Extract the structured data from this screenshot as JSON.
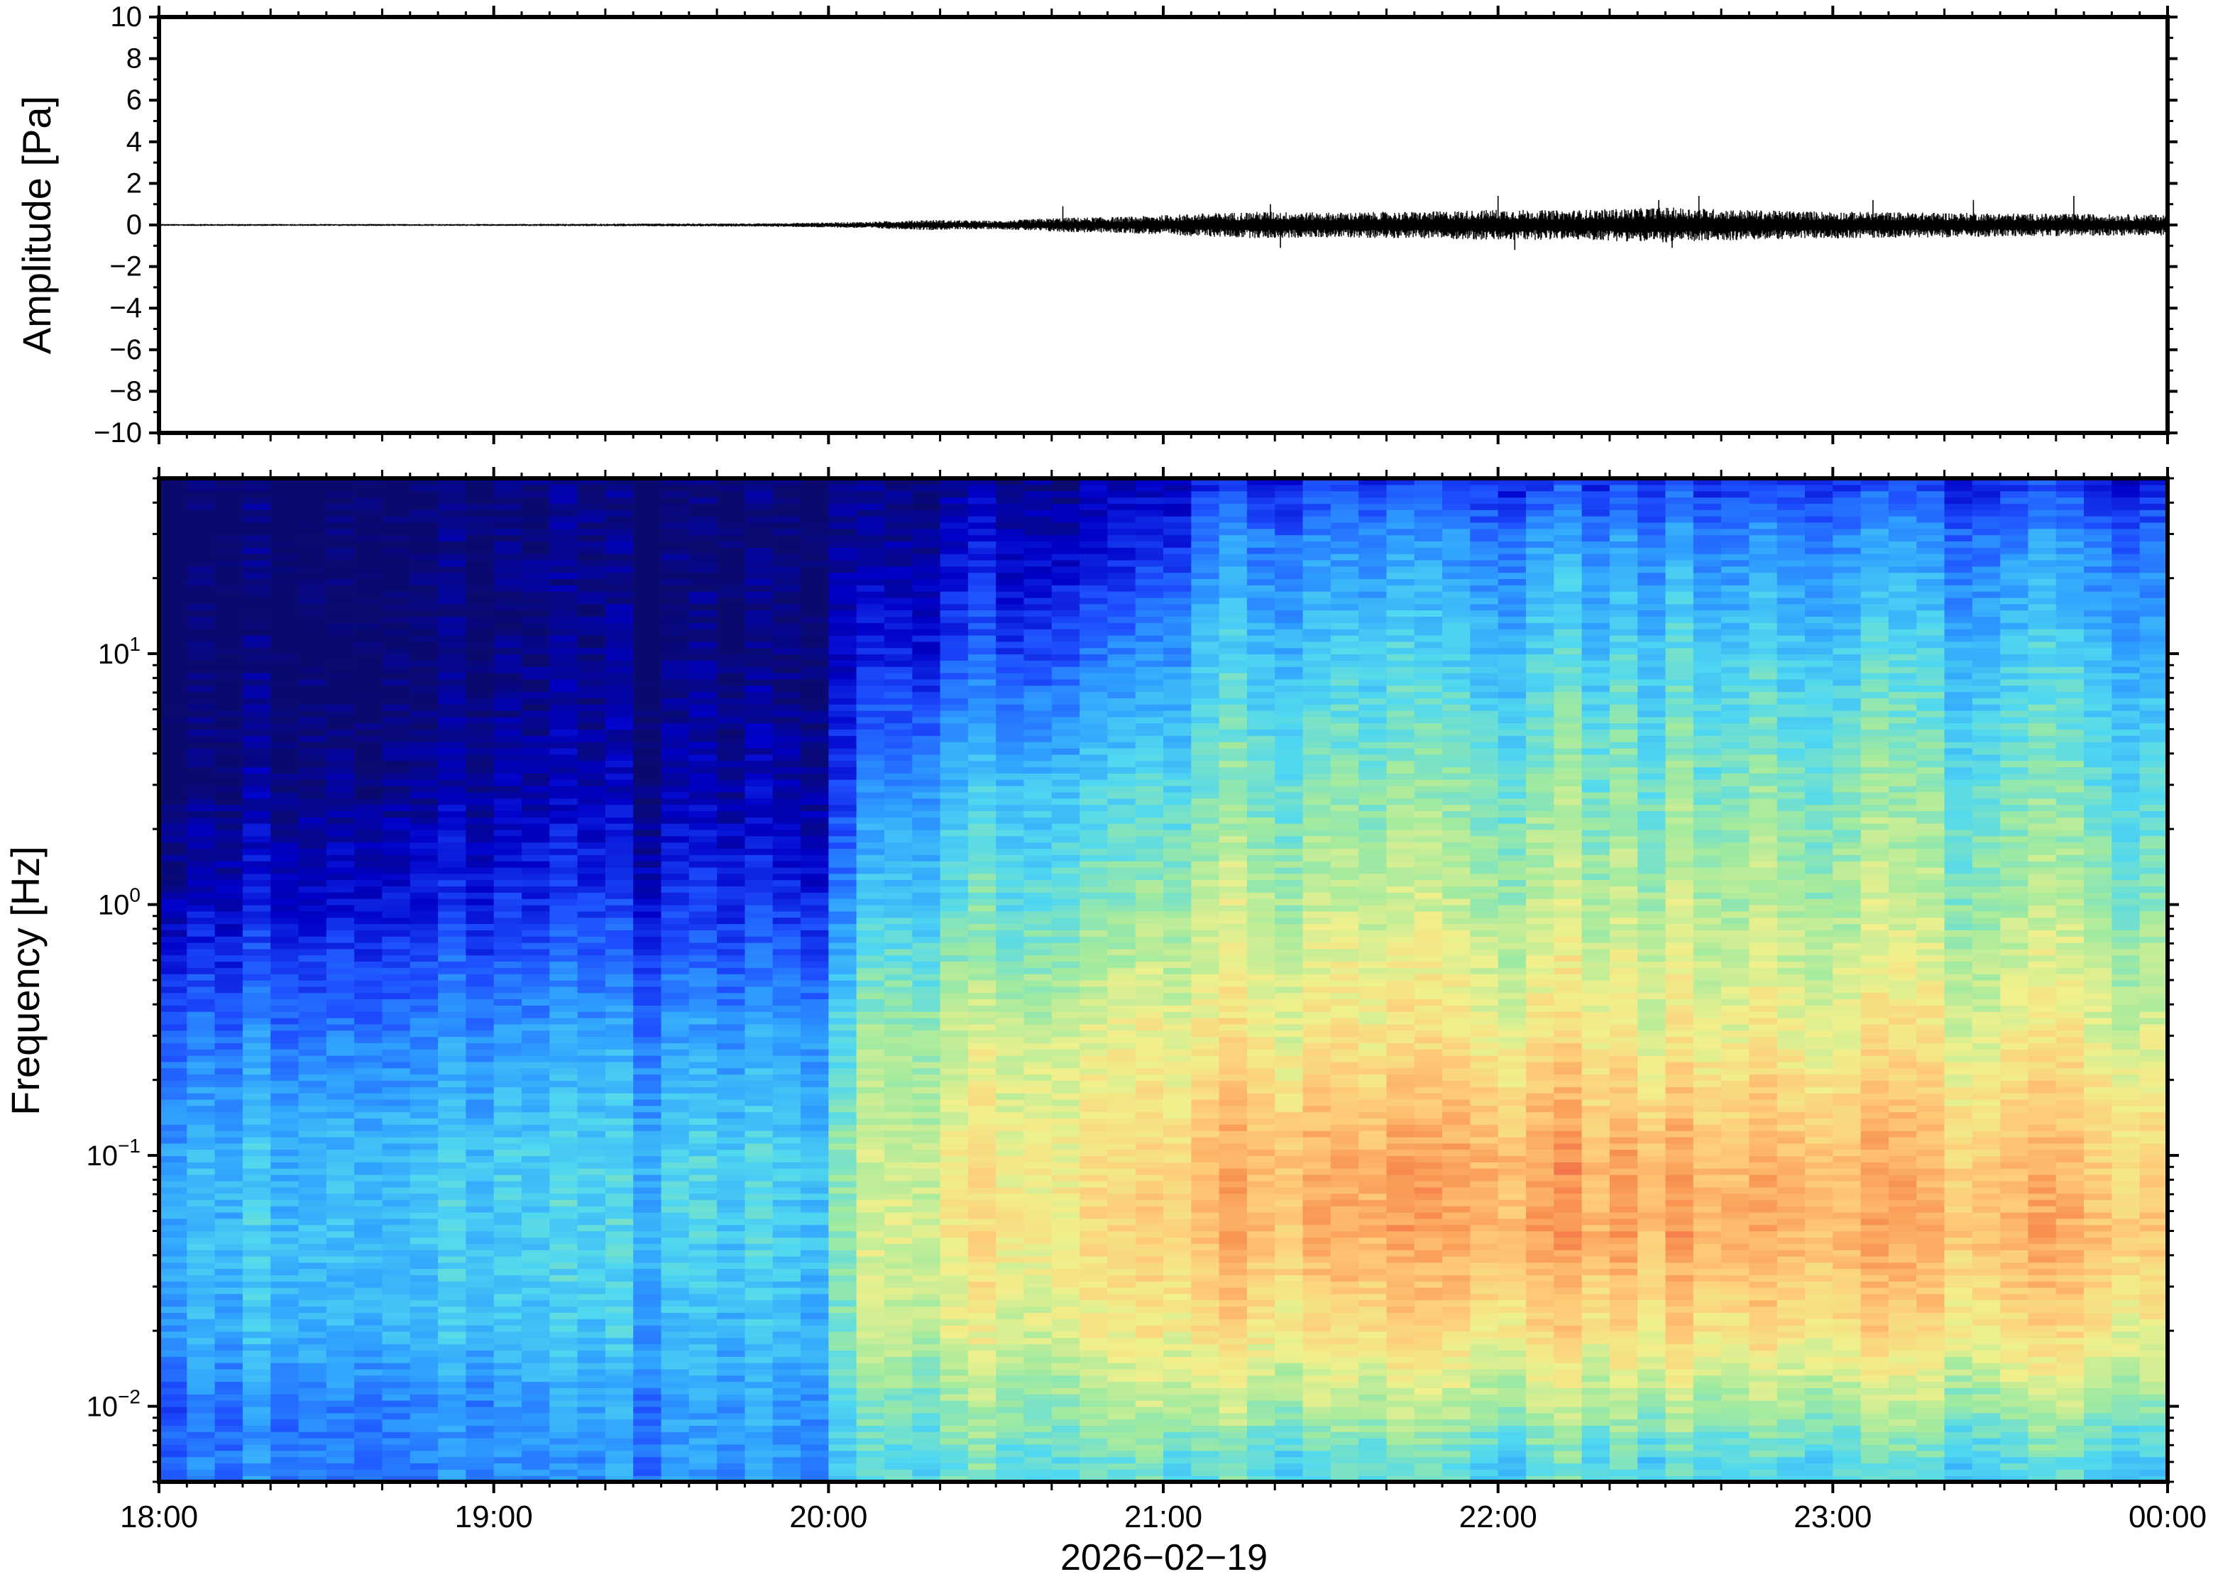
{
  "chart_data": [
    {
      "type": "line",
      "panel": "waveform",
      "title": "",
      "xlabel": "",
      "ylabel": "Amplitude [Pa]",
      "ylim": [
        -10,
        10
      ],
      "y_ticks": [
        10,
        8,
        6,
        4,
        2,
        0,
        -2,
        -4,
        -6,
        -8,
        -10
      ],
      "y_tick_labels": [
        "10",
        "8",
        "6",
        "4",
        "2",
        "0",
        "−2",
        "−4",
        "−6",
        "−8",
        "−10"
      ],
      "x_range": [
        "18:00",
        "00:00"
      ],
      "envelope": {
        "x_hours": [
          18.0,
          19.0,
          19.8,
          20.1,
          20.3,
          20.5,
          20.7,
          20.9,
          21.1,
          21.3,
          21.5,
          21.8,
          22.0,
          22.2,
          22.5,
          22.8,
          23.0,
          23.3,
          23.6,
          24.0
        ],
        "half_amplitude": [
          0.05,
          0.05,
          0.08,
          0.15,
          0.25,
          0.2,
          0.35,
          0.4,
          0.55,
          0.65,
          0.6,
          0.65,
          0.75,
          0.7,
          0.85,
          0.7,
          0.65,
          0.6,
          0.55,
          0.5
        ]
      },
      "spikes": [
        {
          "x": 20.7,
          "y": 0.9
        },
        {
          "x": 21.32,
          "y": 1.0
        },
        {
          "x": 21.35,
          "y": -1.1
        },
        {
          "x": 22.0,
          "y": 1.4
        },
        {
          "x": 22.05,
          "y": -1.2
        },
        {
          "x": 22.48,
          "y": 1.2
        },
        {
          "x": 22.6,
          "y": 1.4
        },
        {
          "x": 22.52,
          "y": -1.1
        },
        {
          "x": 23.12,
          "y": 1.2
        },
        {
          "x": 23.42,
          "y": 1.2
        },
        {
          "x": 23.72,
          "y": 1.4
        }
      ]
    },
    {
      "type": "heatmap",
      "panel": "spectrogram",
      "title": "",
      "xlabel": "2026−02−19",
      "ylabel": "Frequency [Hz]",
      "y_scale": "log",
      "ylim_hz": [
        0.005,
        50
      ],
      "y_major_ticks": [
        0.01,
        0.1,
        1,
        10
      ],
      "y_tick_labels": [
        {
          "base": "10",
          "exp": "−2"
        },
        {
          "base": "10",
          "exp": "−1"
        },
        {
          "base": "10",
          "exp": "0"
        },
        {
          "base": "10",
          "exp": "1"
        }
      ],
      "x_range": [
        "18:00",
        "00:00"
      ],
      "x_tick_labels": [
        "18:00",
        "19:00",
        "20:00",
        "21:00",
        "22:00",
        "23:00",
        "00:00"
      ],
      "colormap": [
        "#0a0a6e",
        "#0000c8",
        "#1e50ff",
        "#2fa0ff",
        "#50d8f0",
        "#a0eaa0",
        "#f0f08c",
        "#ffc878",
        "#f89050",
        "#e84040"
      ],
      "time_hours": [
        18.0,
        19.0,
        20.0,
        20.1,
        20.5,
        21.0,
        21.15,
        22.0,
        22.5,
        23.0,
        24.0
      ],
      "band_freqs_hz": [
        0.006,
        0.01,
        0.02,
        0.05,
        0.1,
        0.3,
        1,
        3,
        10,
        30,
        50
      ],
      "normalized_power": [
        [
          0.3,
          0.28,
          0.38,
          0.4,
          0.38,
          0.28,
          0.12,
          0.03,
          0.0,
          0.0,
          0.0
        ],
        [
          0.28,
          0.3,
          0.38,
          0.4,
          0.4,
          0.3,
          0.16,
          0.05,
          0.0,
          0.0,
          0.0
        ],
        [
          0.32,
          0.34,
          0.38,
          0.42,
          0.42,
          0.34,
          0.18,
          0.07,
          0.02,
          0.0,
          0.0
        ],
        [
          0.48,
          0.52,
          0.62,
          0.64,
          0.62,
          0.56,
          0.42,
          0.3,
          0.16,
          0.06,
          0.04
        ],
        [
          0.48,
          0.55,
          0.64,
          0.7,
          0.68,
          0.62,
          0.48,
          0.4,
          0.22,
          0.1,
          0.05
        ],
        [
          0.46,
          0.56,
          0.66,
          0.72,
          0.7,
          0.64,
          0.52,
          0.42,
          0.28,
          0.12,
          0.06
        ],
        [
          0.46,
          0.58,
          0.7,
          0.8,
          0.8,
          0.68,
          0.6,
          0.5,
          0.4,
          0.28,
          0.16
        ],
        [
          0.46,
          0.58,
          0.72,
          0.84,
          0.84,
          0.7,
          0.6,
          0.52,
          0.42,
          0.3,
          0.18
        ],
        [
          0.46,
          0.58,
          0.72,
          0.84,
          0.82,
          0.68,
          0.6,
          0.52,
          0.44,
          0.32,
          0.18
        ],
        [
          0.46,
          0.56,
          0.72,
          0.82,
          0.8,
          0.68,
          0.58,
          0.52,
          0.42,
          0.3,
          0.18
        ],
        [
          0.44,
          0.56,
          0.7,
          0.8,
          0.76,
          0.66,
          0.56,
          0.48,
          0.4,
          0.28,
          0.16
        ]
      ]
    }
  ]
}
